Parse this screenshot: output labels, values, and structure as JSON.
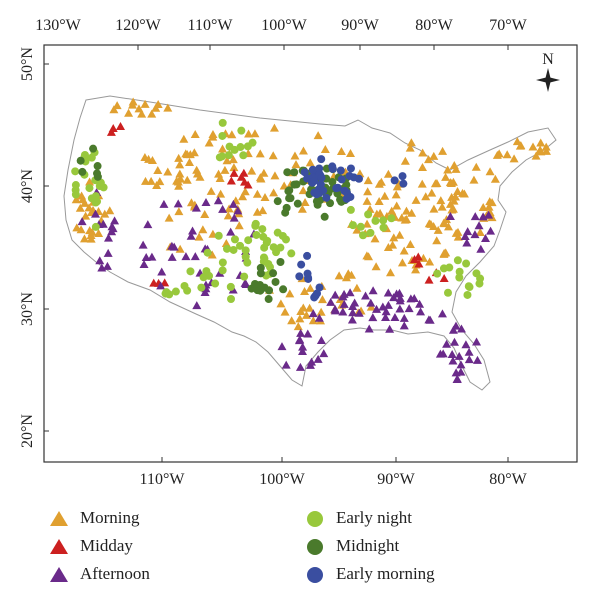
{
  "map": {
    "top_axis_labels": [
      "130°W",
      "120°W",
      "110°W",
      "100°W",
      "90°W",
      "80°W",
      "70°W"
    ],
    "bottom_axis_labels": [
      "110°W",
      "100°W",
      "90°W",
      "80°W"
    ],
    "left_axis_labels": [
      "50°N",
      "40°N",
      "30°N",
      "20°N"
    ],
    "north_label": "N",
    "colors": {
      "morning": "#e0a030",
      "midday": "#cc2020",
      "afternoon": "#6a2a8a",
      "early_night": "#98c83c",
      "midnight": "#4a7a2c",
      "early_morning": "#3a4ea0"
    }
  },
  "legend": {
    "items": [
      {
        "key": "morning",
        "label": "Morning",
        "shape": "triangle",
        "color": "#e0a030"
      },
      {
        "key": "midday",
        "label": "Midday",
        "shape": "triangle",
        "color": "#cc2020"
      },
      {
        "key": "afternoon",
        "label": "Afternoon",
        "shape": "triangle",
        "color": "#6a2a8a"
      },
      {
        "key": "early_night",
        "label": "Early night",
        "shape": "circle",
        "color": "#98c83c"
      },
      {
        "key": "midnight",
        "label": "Midnight",
        "shape": "circle",
        "color": "#4a7a2c"
      },
      {
        "key": "early_morning",
        "label": "Early morning",
        "shape": "circle",
        "color": "#3a4ea0"
      }
    ]
  }
}
